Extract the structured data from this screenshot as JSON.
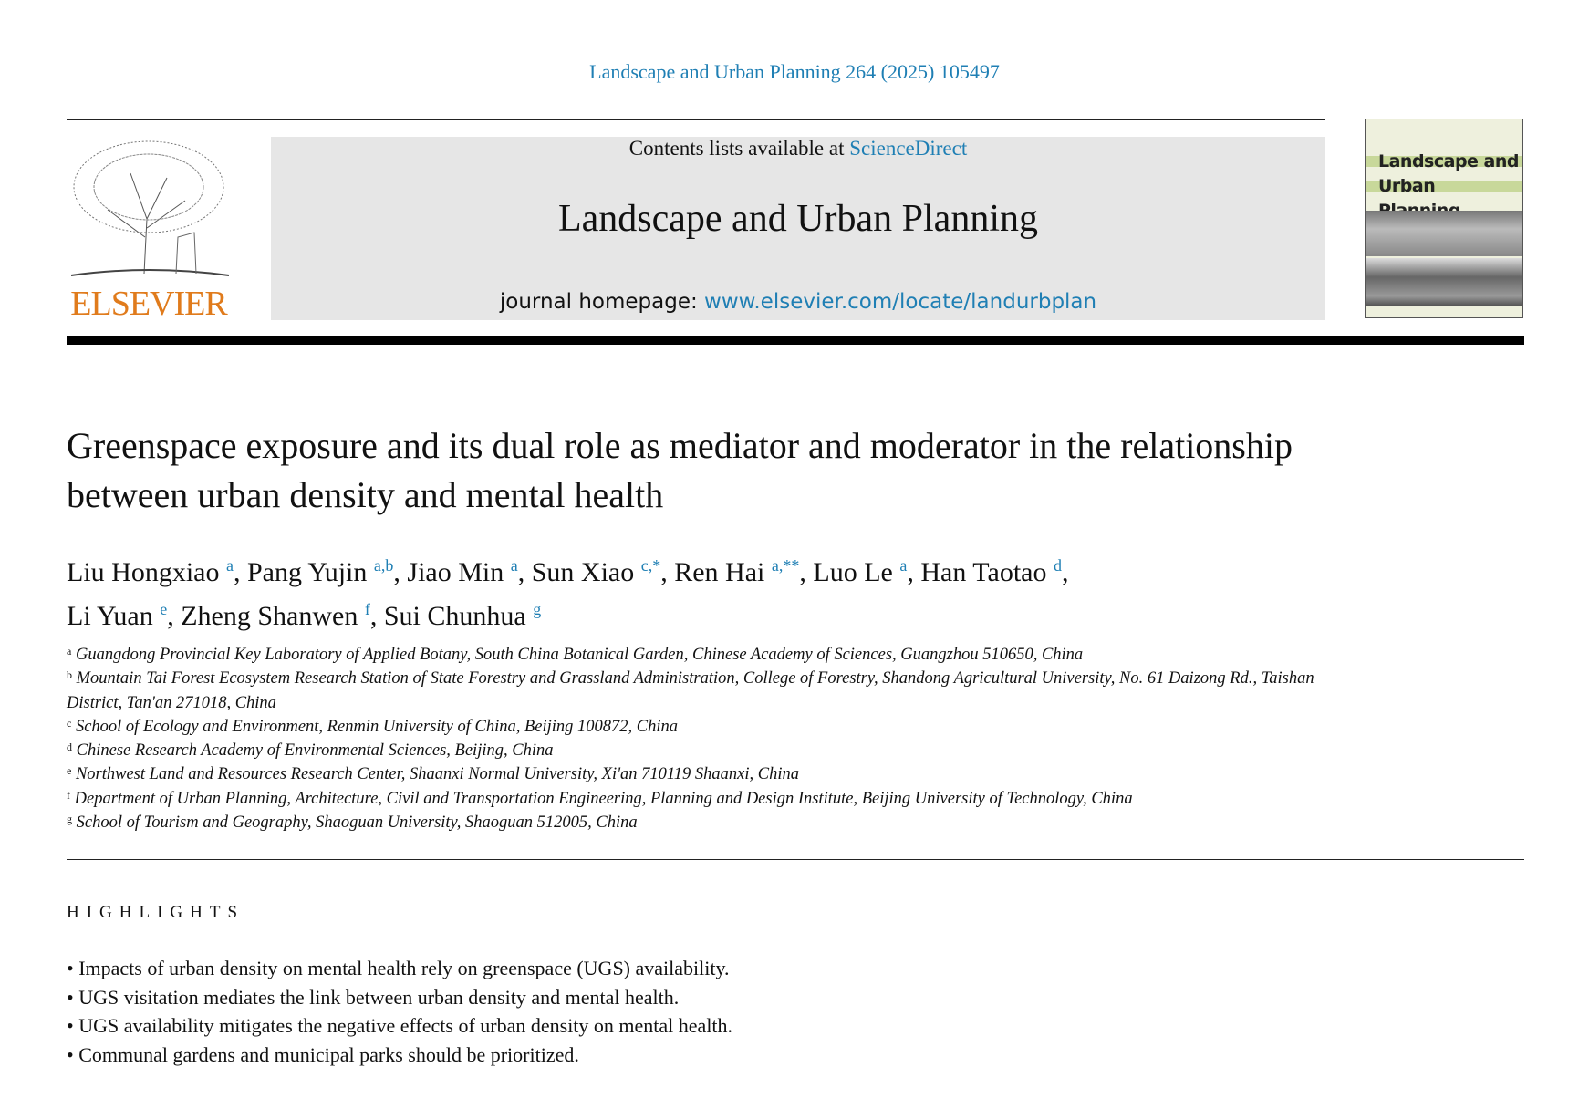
{
  "journal_ref": "Landscape and Urban Planning 264 (2025) 105497",
  "banner": {
    "contents_prefix": "Contents lists available at ",
    "contents_link": "ScienceDirect",
    "journal_title": "Landscape and Urban Planning",
    "homepage_prefix": "journal homepage: ",
    "homepage_link": "www.elsevier.com/locate/landurbplan"
  },
  "publisher_logo": "ELSEVIER",
  "cover": {
    "title_line1": "Landscape and",
    "title_line2": "Urban Planning"
  },
  "article": {
    "title": "Greenspace exposure and its dual role as mediator and moderator in the relationship between urban density and mental health"
  },
  "authors": [
    {
      "name": "Liu Hongxiao",
      "sup": "a",
      "sep": ", "
    },
    {
      "name": "Pang Yujin",
      "sup": "a,b",
      "sep": ", "
    },
    {
      "name": "Jiao Min",
      "sup": "a",
      "sep": ", "
    },
    {
      "name": "Sun Xiao",
      "sup": "c,*",
      "sep": ", "
    },
    {
      "name": "Ren Hai",
      "sup": "a,**",
      "sep": ", "
    },
    {
      "name": "Luo Le",
      "sup": "a",
      "sep": ", "
    },
    {
      "name": "Han Taotao",
      "sup": "d",
      "sep": ","
    },
    {
      "name": "Li Yuan",
      "sup": "e",
      "sep": ", "
    },
    {
      "name": "Zheng Shanwen",
      "sup": "f",
      "sep": ", "
    },
    {
      "name": "Sui Chunhua",
      "sup": "g",
      "sep": ""
    }
  ],
  "affiliations": [
    {
      "key": "a",
      "text": "Guangdong Provincial Key Laboratory of Applied Botany, South China Botanical Garden, Chinese Academy of Sciences, Guangzhou 510650, China"
    },
    {
      "key": "b",
      "text": "Mountain Tai Forest Ecosystem Research Station of State Forestry and Grassland Administration, College of Forestry, Shandong Agricultural University, No. 61 Daizong Rd., Taishan District, Tan'an 271018, China"
    },
    {
      "key": "c",
      "text": "School of Ecology and Environment, Renmin University of China, Beijing 100872, China"
    },
    {
      "key": "d",
      "text": "Chinese Research Academy of Environmental Sciences, Beijing, China"
    },
    {
      "key": "e",
      "text": "Northwest Land and Resources Research Center, Shaanxi Normal University, Xi'an 710119 Shaanxi, China"
    },
    {
      "key": "f",
      "text": "Department of Urban Planning, Architecture, Civil and Transportation Engineering, Planning and Design Institute, Beijing University of Technology, China"
    },
    {
      "key": "g",
      "text": "School of Tourism and Geography, Shaoguan University, Shaoguan 512005, China"
    }
  ],
  "highlights": {
    "heading": "HIGHLIGHTS",
    "items": [
      "Impacts of urban density on mental health rely on greenspace (UGS) availability.",
      "UGS visitation mediates the link between urban density and mental health.",
      "UGS availability mitigates the negative effects of urban density on mental health.",
      "Communal gardens and municipal parks should be prioritized."
    ]
  },
  "colors": {
    "link": "#1f7fb4",
    "elsevier_orange": "#e07b1c",
    "banner_bg": "#e6e6e6"
  }
}
